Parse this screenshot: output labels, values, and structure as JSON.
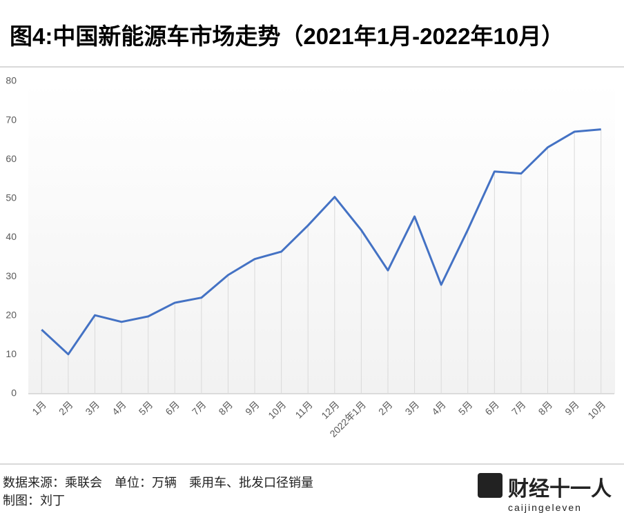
{
  "chart_data": {
    "type": "line",
    "title": "图4:中国新能源车市场走势（2021年1月-2022年10月）",
    "categories": [
      "1月",
      "2月",
      "3月",
      "4月",
      "5月",
      "6月",
      "7月",
      "8月",
      "9月",
      "10月",
      "11月",
      "12月",
      "2022年1月",
      "2月",
      "3月",
      "4月",
      "5月",
      "6月",
      "7月",
      "8月",
      "9月",
      "10月"
    ],
    "values": [
      16.4,
      10.1,
      20.1,
      18.4,
      19.8,
      23.3,
      24.6,
      30.4,
      34.5,
      36.4,
      43.1,
      50.4,
      41.9,
      31.6,
      45.4,
      27.9,
      42.0,
      56.9,
      56.4,
      63.1,
      67.1,
      67.7
    ],
    "color": "#4472c4",
    "drop_lines": true,
    "ylim": [
      0,
      80
    ],
    "yticks": [
      0,
      10,
      20,
      30,
      40,
      50,
      60,
      70,
      80
    ]
  },
  "footer": {
    "source": "数据来源：乘联会　单位：万辆　乘用车、批发口径销量",
    "author": "制图：刘丁",
    "logo_name": "财经十一人",
    "logo_subtitle": "caijingeleven"
  }
}
